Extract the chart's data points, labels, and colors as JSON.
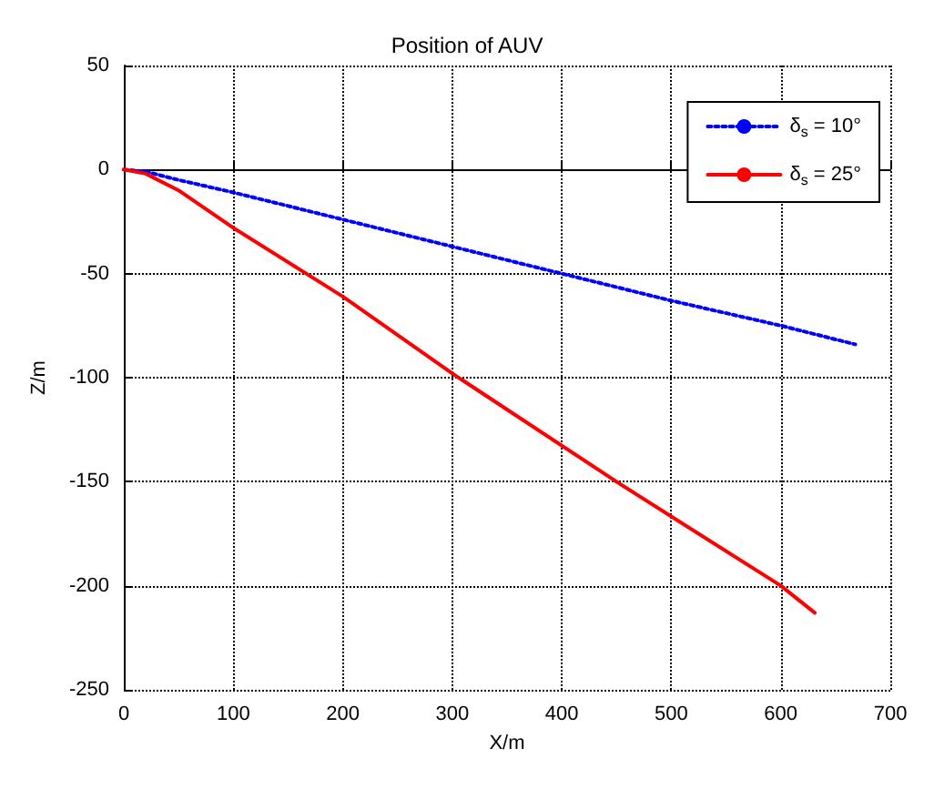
{
  "chart_data": {
    "type": "line",
    "title": "Position of AUV",
    "xlabel": "X/m",
    "ylabel": "Z/m",
    "xlim": [
      0,
      700
    ],
    "xticks": [
      0,
      100,
      200,
      300,
      400,
      500,
      600,
      700
    ],
    "ylim": [
      -250,
      50
    ],
    "yticks": [
      -250,
      -200,
      -150,
      -100,
      -50,
      0,
      50
    ],
    "grid": true,
    "legend": "top right",
    "marker": "none",
    "series": [
      {
        "name": "δ$_{s}$ = 10°",
        "color": "#0000ff",
        "line_style": "dotted",
        "x": [
          0,
          20,
          50,
          100,
          200,
          300,
          400,
          500,
          600,
          668
        ],
        "values": [
          0,
          -1,
          -5,
          -11,
          -24,
          -37,
          -50,
          -63,
          -75,
          -84
        ]
      },
      {
        "name": "δ$_{s}$ = 25°",
        "color": "#ff0000",
        "line_style": "solid",
        "x": [
          0,
          20,
          50,
          100,
          200,
          300,
          450,
          600,
          631
        ],
        "values": [
          0,
          -2,
          -10,
          -28,
          -61,
          -98,
          -150,
          -200,
          -213
        ]
      }
    ]
  }
}
